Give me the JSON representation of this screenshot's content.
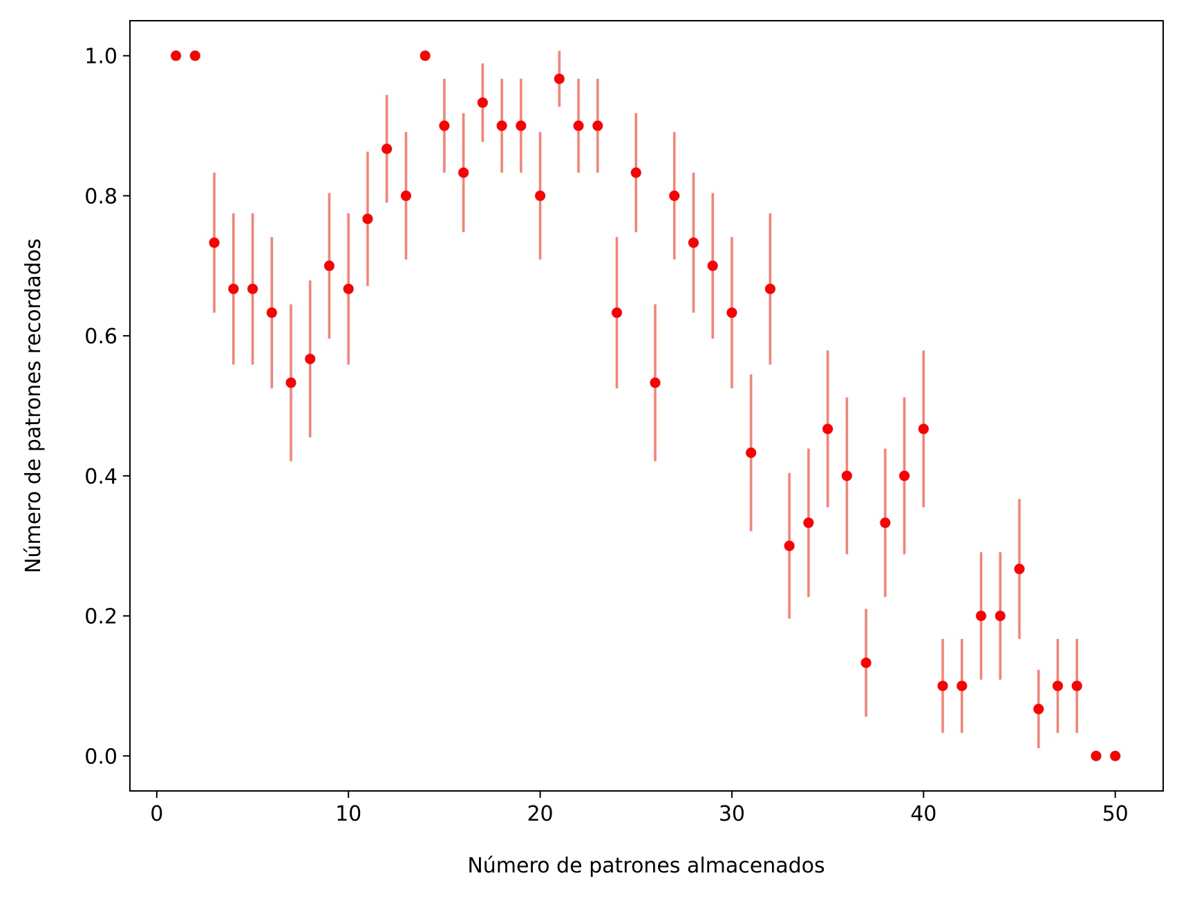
{
  "chart_data": {
    "type": "scatter",
    "title": "",
    "xlabel": "Número de patrones almacenados",
    "ylabel": "Número de patrones recordados",
    "xlim": [
      -1.4,
      52.5
    ],
    "ylim": [
      -0.05,
      1.05
    ],
    "xticks": [
      0,
      10,
      20,
      30,
      40,
      50
    ],
    "xtick_labels": [
      "0",
      "10",
      "20",
      "30",
      "40",
      "50"
    ],
    "yticks": [
      0.0,
      0.2,
      0.4,
      0.6,
      0.8,
      1.0
    ],
    "ytick_labels": [
      "0.0",
      "0.2",
      "0.4",
      "0.6",
      "0.8",
      "1.0"
    ],
    "grid": false,
    "colors": {
      "marker": "#ff0000",
      "errorbar": "#fa8072"
    },
    "series": [
      {
        "name": "recordados",
        "x": [
          1,
          2,
          3,
          4,
          5,
          6,
          7,
          8,
          9,
          10,
          11,
          12,
          13,
          14,
          15,
          16,
          17,
          18,
          19,
          20,
          21,
          22,
          23,
          24,
          25,
          26,
          27,
          28,
          29,
          30,
          31,
          32,
          33,
          34,
          35,
          36,
          37,
          38,
          39,
          40,
          41,
          42,
          43,
          44,
          45,
          46,
          47,
          48,
          49,
          50
        ],
        "y": [
          1.0,
          1.0,
          0.733,
          0.667,
          0.667,
          0.633,
          0.533,
          0.567,
          0.7,
          0.667,
          0.767,
          0.867,
          0.8,
          1.0,
          0.9,
          0.833,
          0.933,
          0.9,
          0.9,
          0.8,
          0.967,
          0.9,
          0.9,
          0.633,
          0.833,
          0.533,
          0.8,
          0.733,
          0.7,
          0.633,
          0.433,
          0.667,
          0.3,
          0.333,
          0.467,
          0.4,
          0.133,
          0.333,
          0.4,
          0.467,
          0.1,
          0.1,
          0.2,
          0.2,
          0.267,
          0.067,
          0.1,
          0.1,
          0.0,
          0.0
        ],
        "err": [
          0,
          0,
          0.1,
          0.108,
          0.108,
          0.108,
          0.112,
          0.112,
          0.104,
          0.108,
          0.096,
          0.077,
          0.091,
          0,
          0.067,
          0.085,
          0.056,
          0.067,
          0.067,
          0.091,
          0.04,
          0.067,
          0.067,
          0.108,
          0.085,
          0.112,
          0.091,
          0.1,
          0.104,
          0.108,
          0.112,
          0.108,
          0.104,
          0.106,
          0.112,
          0.112,
          0.077,
          0.106,
          0.112,
          0.112,
          0.067,
          0.067,
          0.091,
          0.091,
          0.1,
          0.056,
          0.067,
          0.067,
          0,
          0
        ]
      }
    ]
  }
}
